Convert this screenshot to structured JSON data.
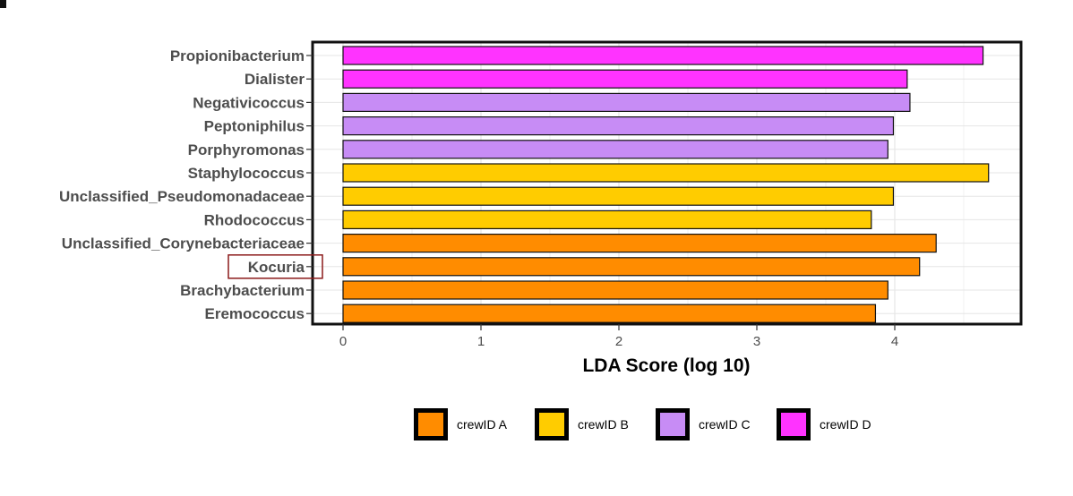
{
  "chart_data": {
    "type": "bar",
    "orientation": "horizontal",
    "title": "",
    "xlabel": "LDA Score (log 10)",
    "ylabel": "",
    "xlim": [
      -0.22,
      4.9
    ],
    "xticks": [
      "0",
      "1",
      "2",
      "3",
      "4"
    ],
    "grid": true,
    "categories": [
      "Propionibacterium",
      "Dialister",
      "Negativicoccus",
      "Peptoniphilus",
      "Porphyromonas",
      "Staphylococcus",
      "Unclassified_Pseudomonadaceae",
      "Rhodococcus",
      "Unclassified_Corynebacteriaceae",
      "Kocuria",
      "Brachybacterium",
      "Eremococcus"
    ],
    "values": [
      4.64,
      4.09,
      4.11,
      3.99,
      3.95,
      4.68,
      3.99,
      3.83,
      4.3,
      4.18,
      3.95,
      3.86
    ],
    "groups": [
      "crewID D",
      "crewID D",
      "crewID C",
      "crewID C",
      "crewID C",
      "crewID B",
      "crewID B",
      "crewID B",
      "crewID A",
      "crewID A",
      "crewID A",
      "crewID A"
    ],
    "highlighted_category": "Kocuria",
    "legend": [
      {
        "label": "crewID A",
        "color": "#ff8c00"
      },
      {
        "label": "crewID B",
        "color": "#ffcc00"
      },
      {
        "label": "crewID C",
        "color": "#c78cf5"
      },
      {
        "label": "crewID D",
        "color": "#ff33ff"
      }
    ],
    "legend_position": "bottom"
  },
  "colors": {
    "bar_outline": "#111111",
    "panel_border": "#111111",
    "grid": "#e6e6e6",
    "highlight_box": "#8b1a1a"
  }
}
